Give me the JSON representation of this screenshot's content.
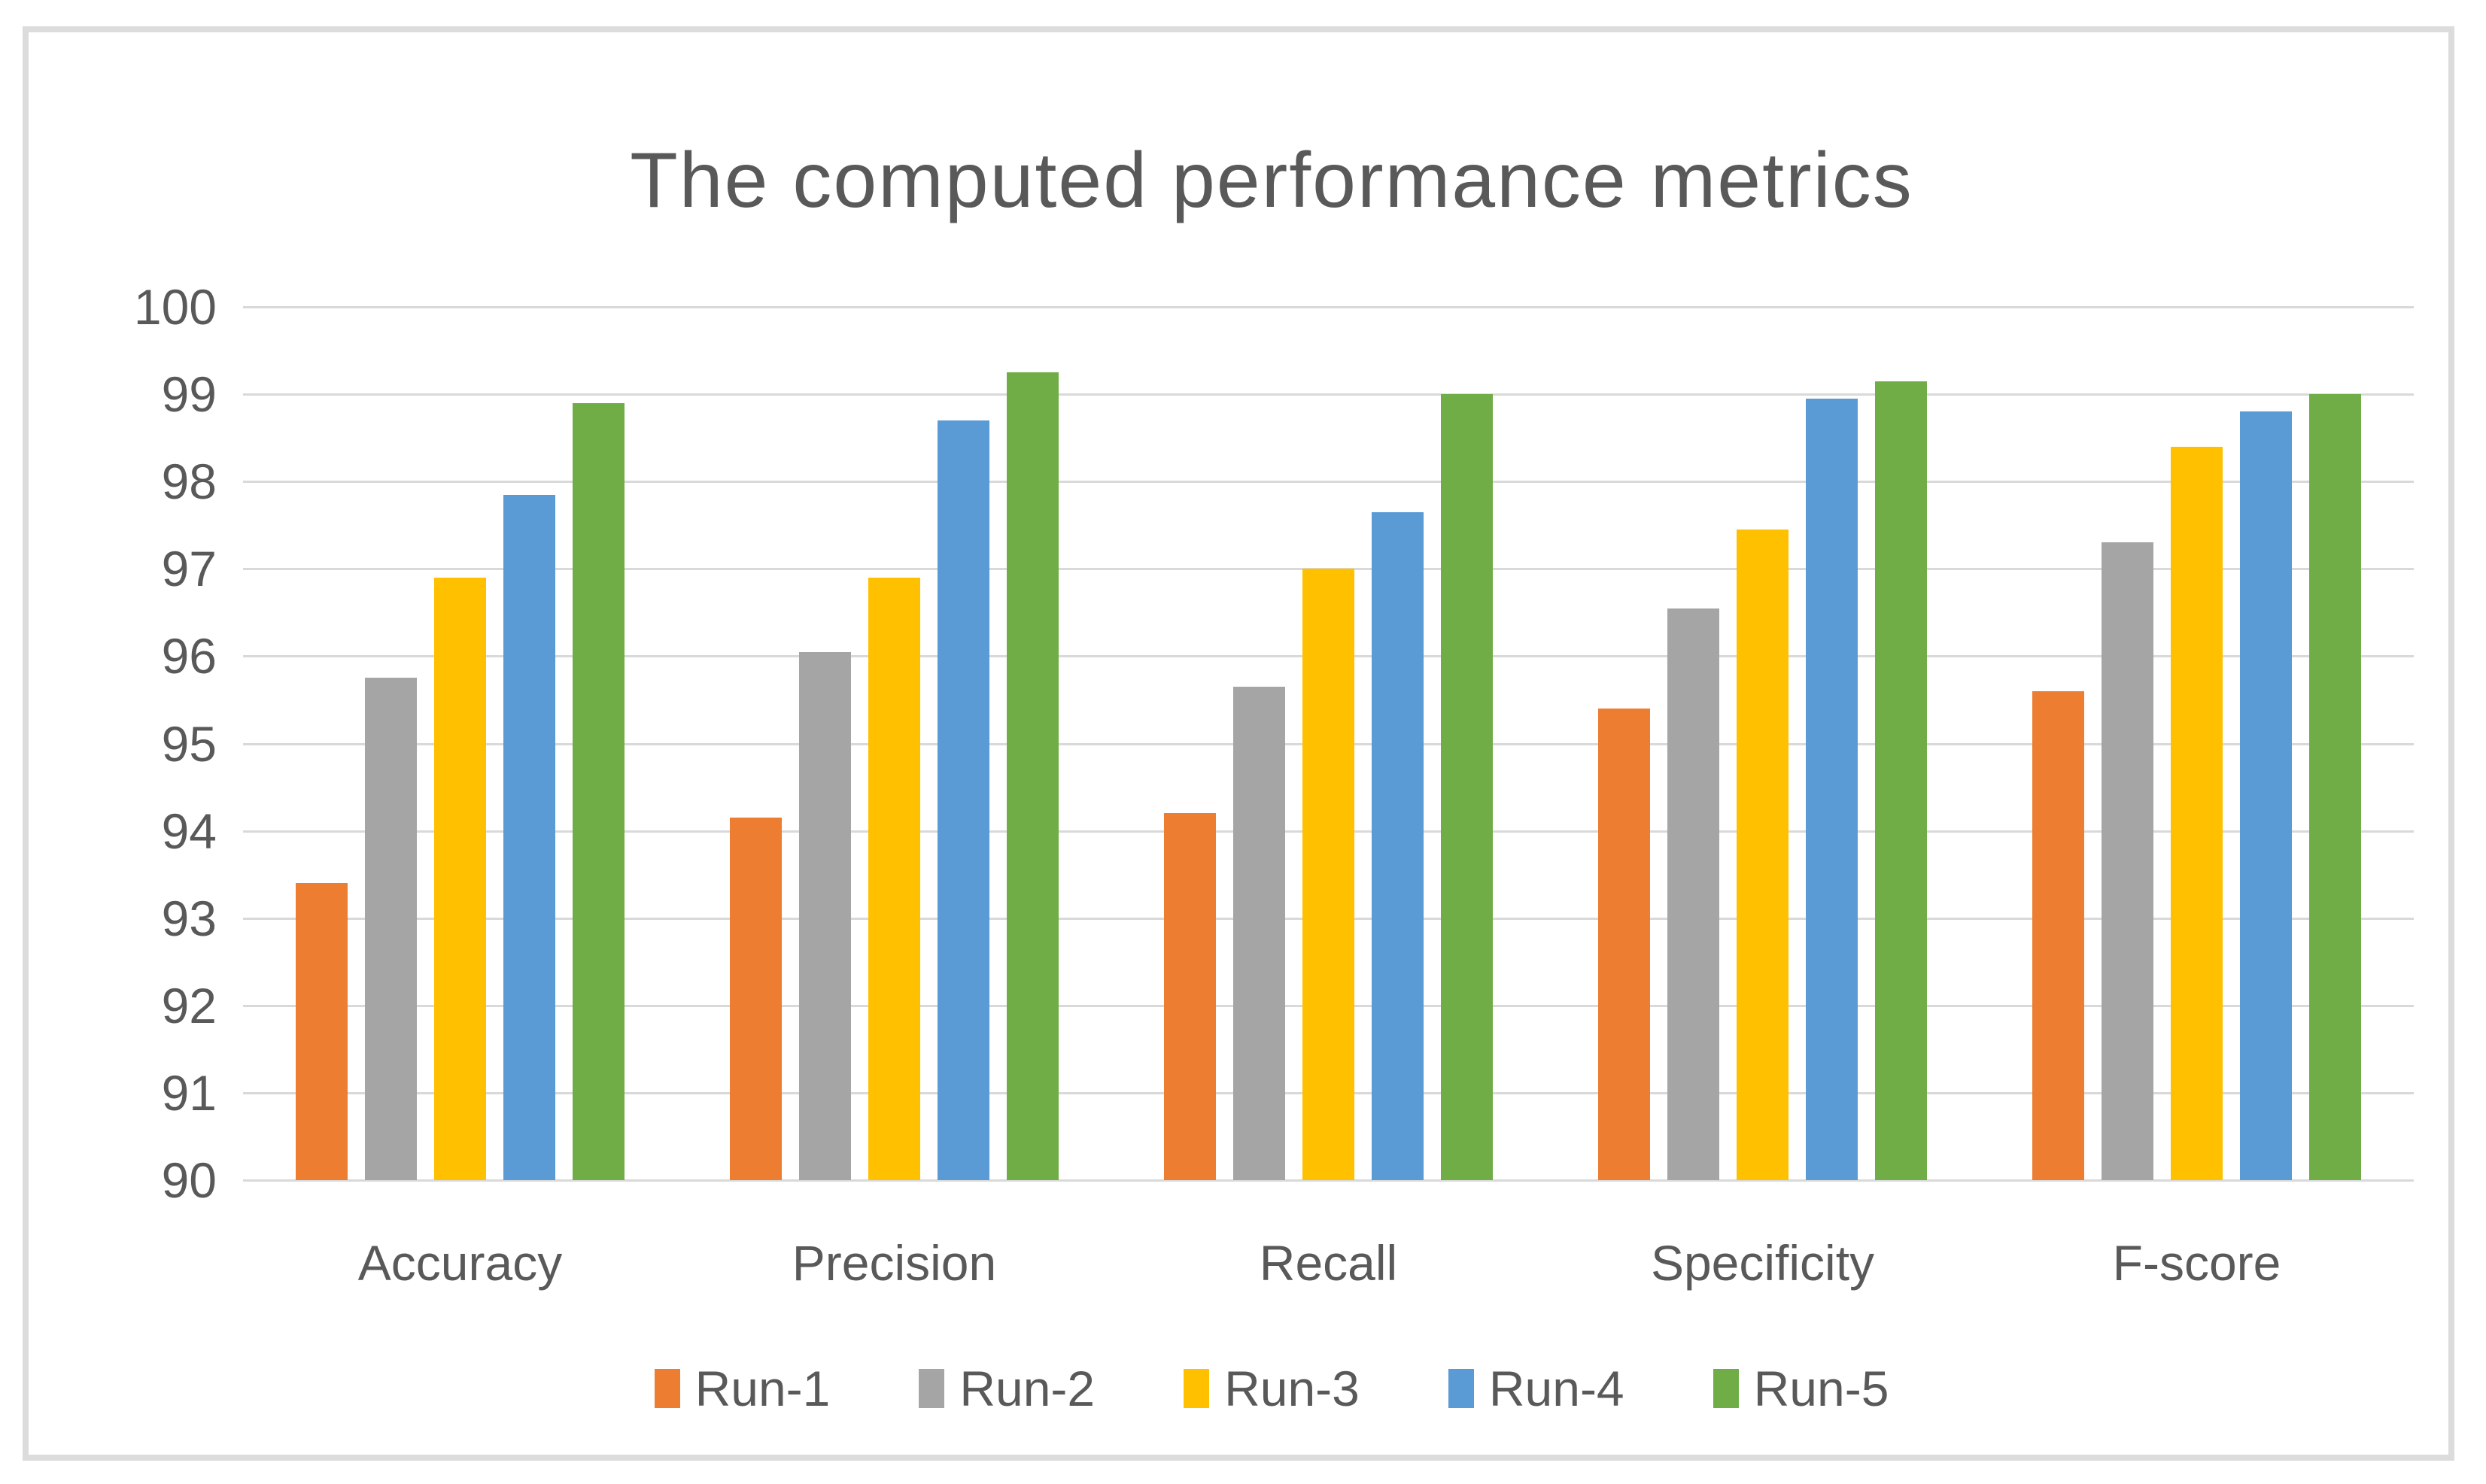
{
  "chart_data": {
    "type": "bar",
    "title": "The computed performance metrics",
    "categories": [
      "Accuracy",
      "Precision",
      "Recall",
      "Specificity",
      "F-score"
    ],
    "series": [
      {
        "name": "Run-1",
        "color": "#ED7D31",
        "values": [
          93.4,
          94.15,
          94.2,
          95.4,
          95.6
        ]
      },
      {
        "name": "Run-2",
        "color": "#A5A5A5",
        "values": [
          95.75,
          96.05,
          95.65,
          96.55,
          97.3
        ]
      },
      {
        "name": "Run-3",
        "color": "#FFC000",
        "values": [
          96.9,
          96.9,
          97.0,
          97.45,
          98.4
        ]
      },
      {
        "name": "Run-4",
        "color": "#5B9BD5",
        "values": [
          97.85,
          98.7,
          97.65,
          98.95,
          98.8
        ]
      },
      {
        "name": "Run-5",
        "color": "#70AD47",
        "values": [
          98.9,
          99.25,
          99.0,
          99.15,
          99.0
        ]
      }
    ],
    "xlabel": "",
    "ylabel": "",
    "ylim": [
      90,
      100
    ],
    "ytick_step": 1,
    "ytick_labels": [
      "100",
      "99",
      "98",
      "97",
      "96",
      "95",
      "94",
      "93",
      "92",
      "91",
      "90"
    ],
    "grid": "horizontal",
    "legend_position": "bottom",
    "colors": {
      "text": "#595959",
      "gridline": "#d9d9d9",
      "frame_border": "#dcdcdc",
      "background": "#ffffff"
    }
  }
}
